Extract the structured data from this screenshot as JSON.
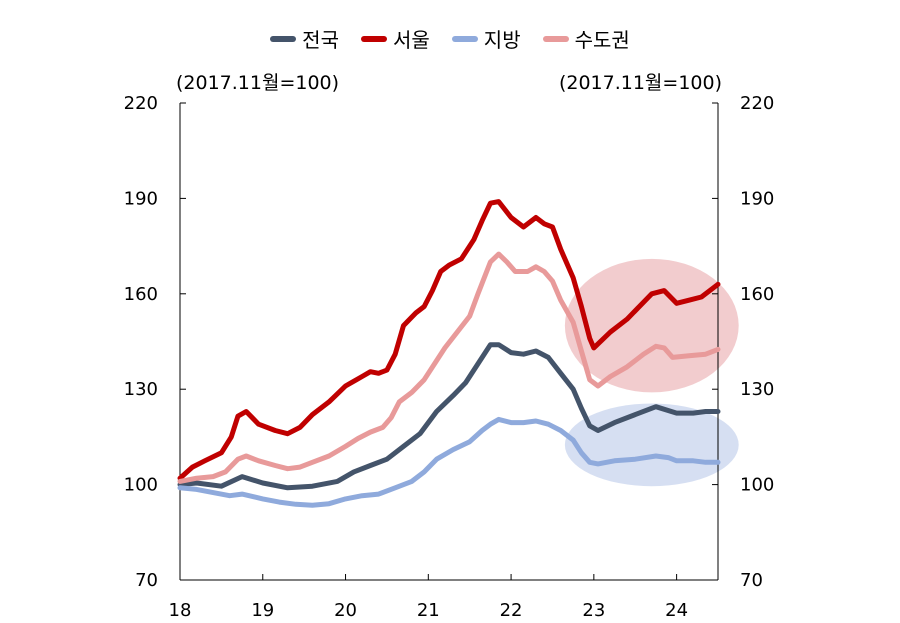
{
  "legend": [
    {
      "name": "전국",
      "color": "#44546a"
    },
    {
      "name": "서울",
      "color": "#c00000"
    },
    {
      "name": "지방",
      "color": "#8faadc"
    },
    {
      "name": "수도권",
      "color": "#e89a9a"
    }
  ],
  "unit_left": "(2017.11월=100)",
  "unit_right": "(2017.11월=100)",
  "chart_data": {
    "type": "line",
    "x_tick_labels": [
      "18",
      "19",
      "20",
      "21",
      "22",
      "23",
      "24"
    ],
    "x_ticks": [
      2018,
      2019,
      2020,
      2021,
      2022,
      2023,
      2024
    ],
    "xlim": [
      2018.0,
      2024.5
    ],
    "ylim": [
      70,
      220
    ],
    "y_ticks": [
      70,
      100,
      130,
      160,
      190,
      220
    ],
    "y_tick_labels": [
      "70",
      "100",
      "130",
      "160",
      "190",
      "220"
    ],
    "grid": false,
    "legend_position": "top-center",
    "series": [
      {
        "name": "전국",
        "color": "#44546a",
        "points": [
          [
            2018.0,
            100
          ],
          [
            2018.2,
            100.5
          ],
          [
            2018.5,
            99.5
          ],
          [
            2018.75,
            102.5
          ],
          [
            2019.0,
            100.5
          ],
          [
            2019.3,
            99
          ],
          [
            2019.6,
            99.5
          ],
          [
            2019.9,
            101
          ],
          [
            2020.1,
            104
          ],
          [
            2020.3,
            106
          ],
          [
            2020.5,
            108
          ],
          [
            2020.7,
            112
          ],
          [
            2020.9,
            116
          ],
          [
            2021.1,
            123
          ],
          [
            2021.3,
            128
          ],
          [
            2021.45,
            132
          ],
          [
            2021.6,
            138
          ],
          [
            2021.75,
            144
          ],
          [
            2021.85,
            144
          ],
          [
            2022.0,
            141.5
          ],
          [
            2022.15,
            141
          ],
          [
            2022.3,
            142
          ],
          [
            2022.45,
            140
          ],
          [
            2022.6,
            135
          ],
          [
            2022.75,
            130
          ],
          [
            2022.85,
            124
          ],
          [
            2022.95,
            118.5
          ],
          [
            2023.05,
            117
          ],
          [
            2023.25,
            119.5
          ],
          [
            2023.5,
            122
          ],
          [
            2023.75,
            124.5
          ],
          [
            2024.0,
            122.5
          ],
          [
            2024.2,
            122.5
          ],
          [
            2024.35,
            123
          ],
          [
            2024.5,
            123
          ]
        ]
      },
      {
        "name": "서울",
        "color": "#c00000",
        "points": [
          [
            2018.0,
            102
          ],
          [
            2018.15,
            105.5
          ],
          [
            2018.3,
            107.5
          ],
          [
            2018.5,
            110
          ],
          [
            2018.62,
            115
          ],
          [
            2018.7,
            121.5
          ],
          [
            2018.8,
            123
          ],
          [
            2018.95,
            119
          ],
          [
            2019.15,
            117
          ],
          [
            2019.3,
            116
          ],
          [
            2019.45,
            118
          ],
          [
            2019.6,
            122
          ],
          [
            2019.8,
            126
          ],
          [
            2020.0,
            131
          ],
          [
            2020.2,
            134
          ],
          [
            2020.3,
            135.5
          ],
          [
            2020.4,
            135
          ],
          [
            2020.5,
            136
          ],
          [
            2020.6,
            141
          ],
          [
            2020.7,
            150
          ],
          [
            2020.85,
            154
          ],
          [
            2020.95,
            156
          ],
          [
            2021.05,
            161
          ],
          [
            2021.15,
            167
          ],
          [
            2021.25,
            169
          ],
          [
            2021.4,
            171
          ],
          [
            2021.55,
            177
          ],
          [
            2021.65,
            183
          ],
          [
            2021.75,
            188.5
          ],
          [
            2021.85,
            189
          ],
          [
            2022.0,
            184
          ],
          [
            2022.15,
            181
          ],
          [
            2022.3,
            184
          ],
          [
            2022.4,
            182
          ],
          [
            2022.5,
            181
          ],
          [
            2022.6,
            174
          ],
          [
            2022.75,
            165
          ],
          [
            2022.85,
            156
          ],
          [
            2022.95,
            146
          ],
          [
            2023.0,
            143
          ],
          [
            2023.2,
            148
          ],
          [
            2023.4,
            152
          ],
          [
            2023.55,
            156
          ],
          [
            2023.7,
            160
          ],
          [
            2023.85,
            161
          ],
          [
            2024.0,
            157
          ],
          [
            2024.15,
            158
          ],
          [
            2024.3,
            159
          ],
          [
            2024.5,
            163
          ]
        ]
      },
      {
        "name": "지방",
        "color": "#8faadc",
        "points": [
          [
            2018.0,
            99
          ],
          [
            2018.2,
            98.5
          ],
          [
            2018.4,
            97.5
          ],
          [
            2018.6,
            96.5
          ],
          [
            2018.75,
            97
          ],
          [
            2019.0,
            95.5
          ],
          [
            2019.2,
            94.5
          ],
          [
            2019.4,
            93.8
          ],
          [
            2019.6,
            93.5
          ],
          [
            2019.8,
            94
          ],
          [
            2020.0,
            95.5
          ],
          [
            2020.2,
            96.5
          ],
          [
            2020.4,
            97
          ],
          [
            2020.6,
            99
          ],
          [
            2020.8,
            101
          ],
          [
            2020.95,
            104
          ],
          [
            2021.1,
            108
          ],
          [
            2021.3,
            111
          ],
          [
            2021.5,
            113.5
          ],
          [
            2021.65,
            117
          ],
          [
            2021.75,
            119
          ],
          [
            2021.85,
            120.5
          ],
          [
            2022.0,
            119.5
          ],
          [
            2022.15,
            119.5
          ],
          [
            2022.3,
            120
          ],
          [
            2022.45,
            119
          ],
          [
            2022.6,
            117
          ],
          [
            2022.75,
            114
          ],
          [
            2022.85,
            110
          ],
          [
            2022.95,
            107
          ],
          [
            2023.05,
            106.5
          ],
          [
            2023.25,
            107.5
          ],
          [
            2023.5,
            108
          ],
          [
            2023.75,
            109
          ],
          [
            2023.9,
            108.5
          ],
          [
            2024.0,
            107.5
          ],
          [
            2024.2,
            107.5
          ],
          [
            2024.35,
            107
          ],
          [
            2024.5,
            107
          ]
        ]
      },
      {
        "name": "수도권",
        "color": "#e89a9a",
        "points": [
          [
            2018.0,
            101
          ],
          [
            2018.2,
            102
          ],
          [
            2018.4,
            102.5
          ],
          [
            2018.55,
            104
          ],
          [
            2018.7,
            108
          ],
          [
            2018.8,
            109
          ],
          [
            2018.95,
            107.5
          ],
          [
            2019.15,
            106
          ],
          [
            2019.3,
            105
          ],
          [
            2019.45,
            105.5
          ],
          [
            2019.6,
            107
          ],
          [
            2019.8,
            109
          ],
          [
            2020.0,
            112
          ],
          [
            2020.15,
            114.5
          ],
          [
            2020.3,
            116.5
          ],
          [
            2020.45,
            118
          ],
          [
            2020.55,
            121
          ],
          [
            2020.65,
            126
          ],
          [
            2020.8,
            129
          ],
          [
            2020.95,
            133
          ],
          [
            2021.1,
            139
          ],
          [
            2021.2,
            143
          ],
          [
            2021.35,
            148
          ],
          [
            2021.5,
            153
          ],
          [
            2021.6,
            160
          ],
          [
            2021.75,
            170
          ],
          [
            2021.85,
            172.5
          ],
          [
            2021.95,
            170
          ],
          [
            2022.05,
            167
          ],
          [
            2022.2,
            167
          ],
          [
            2022.3,
            168.5
          ],
          [
            2022.4,
            167
          ],
          [
            2022.5,
            164
          ],
          [
            2022.6,
            158
          ],
          [
            2022.75,
            151
          ],
          [
            2022.85,
            142
          ],
          [
            2022.95,
            133
          ],
          [
            2023.05,
            131
          ],
          [
            2023.2,
            134
          ],
          [
            2023.4,
            137
          ],
          [
            2023.6,
            141
          ],
          [
            2023.75,
            143.5
          ],
          [
            2023.85,
            143
          ],
          [
            2023.95,
            140
          ],
          [
            2024.15,
            140.5
          ],
          [
            2024.35,
            141
          ],
          [
            2024.5,
            142.5
          ]
        ]
      }
    ],
    "highlights": [
      {
        "color": "#e8a3a5",
        "center": [
          2023.7,
          150
        ],
        "radius_x_years": 1.05,
        "radius_y": 21
      },
      {
        "color": "#b4c5e8",
        "center": [
          2023.7,
          112.5
        ],
        "radius_x_years": 1.05,
        "radius_y": 13
      }
    ]
  }
}
